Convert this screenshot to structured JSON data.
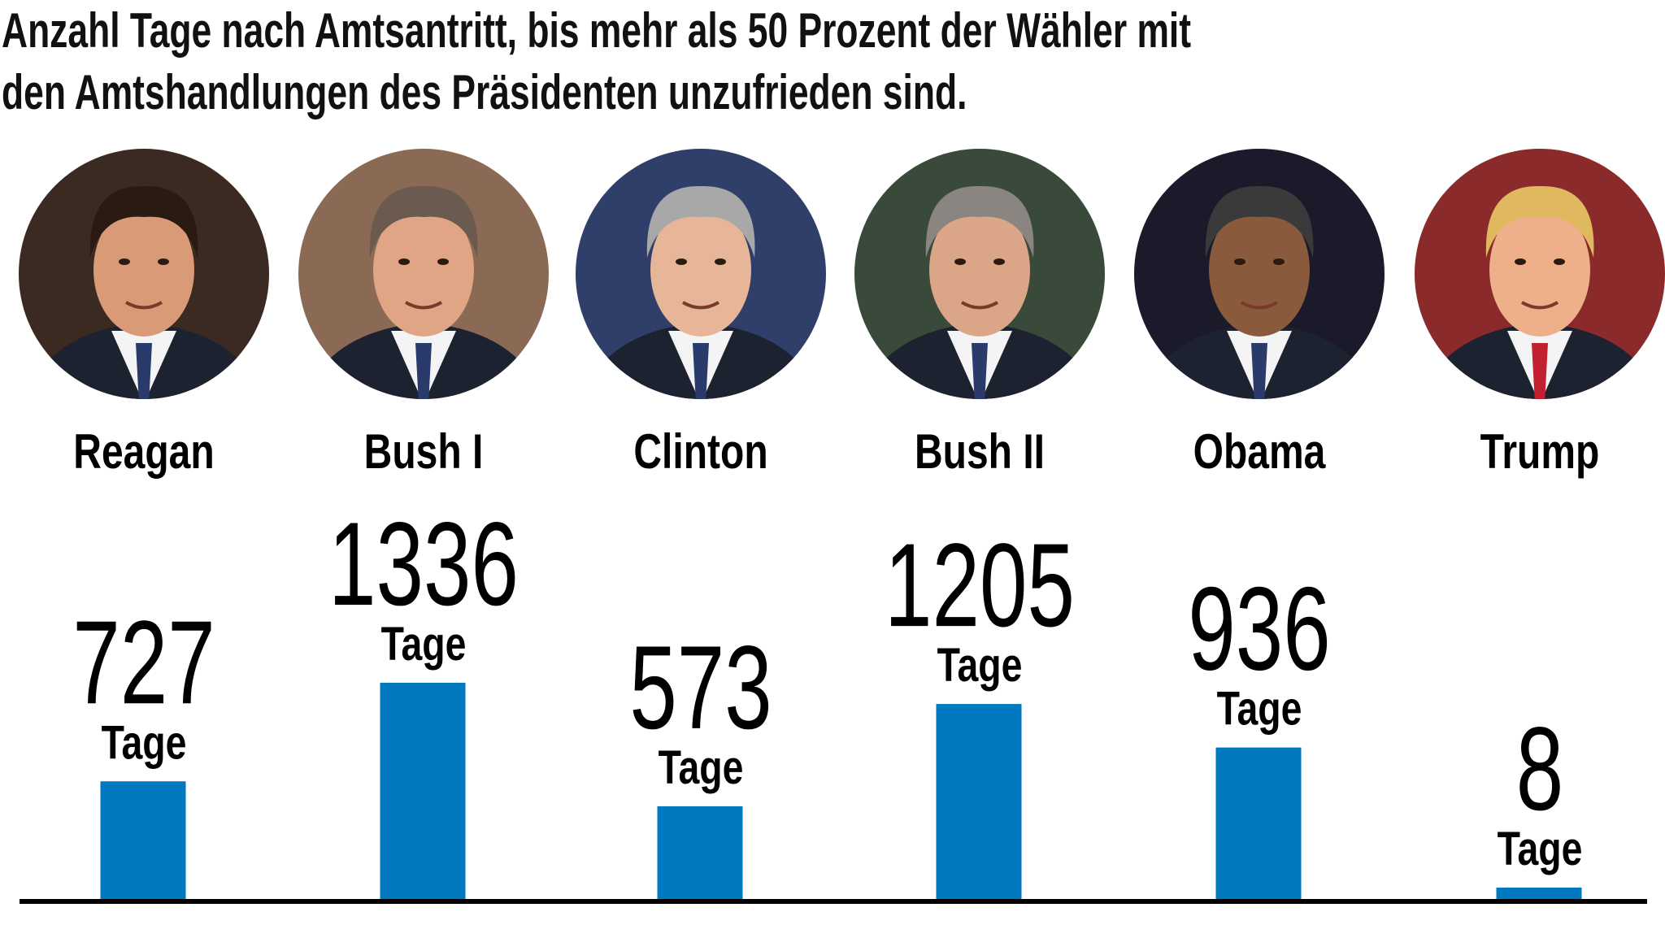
{
  "chart_data": {
    "type": "bar",
    "title": "Anzahl Tage nach Amtsantritt, bis mehr als 50 Prozent der Wähler mit den Amtshandlungen des Präsidenten unzufrieden sind.",
    "title_lines": [
      "Anzahl Tage nach Amtsantritt, bis mehr als 50 Prozent der Wähler mit",
      "den Amtshandlungen des Präsidenten unzufrieden sind."
    ],
    "categories": [
      "Reagan",
      "Bush I",
      "Clinton",
      "Bush II",
      "Obama",
      "Trump"
    ],
    "values": [
      727,
      1336,
      573,
      1205,
      936,
      8
    ],
    "value_labels": [
      "727",
      "1336",
      "573",
      "1205",
      "936",
      "8"
    ],
    "unit_label": "Tage",
    "xlabel": "",
    "ylabel": "",
    "ylim": [
      0,
      1336
    ],
    "grid": false,
    "legend": "none",
    "bar_color": "#0079c1",
    "axis_color": "#000000"
  }
}
